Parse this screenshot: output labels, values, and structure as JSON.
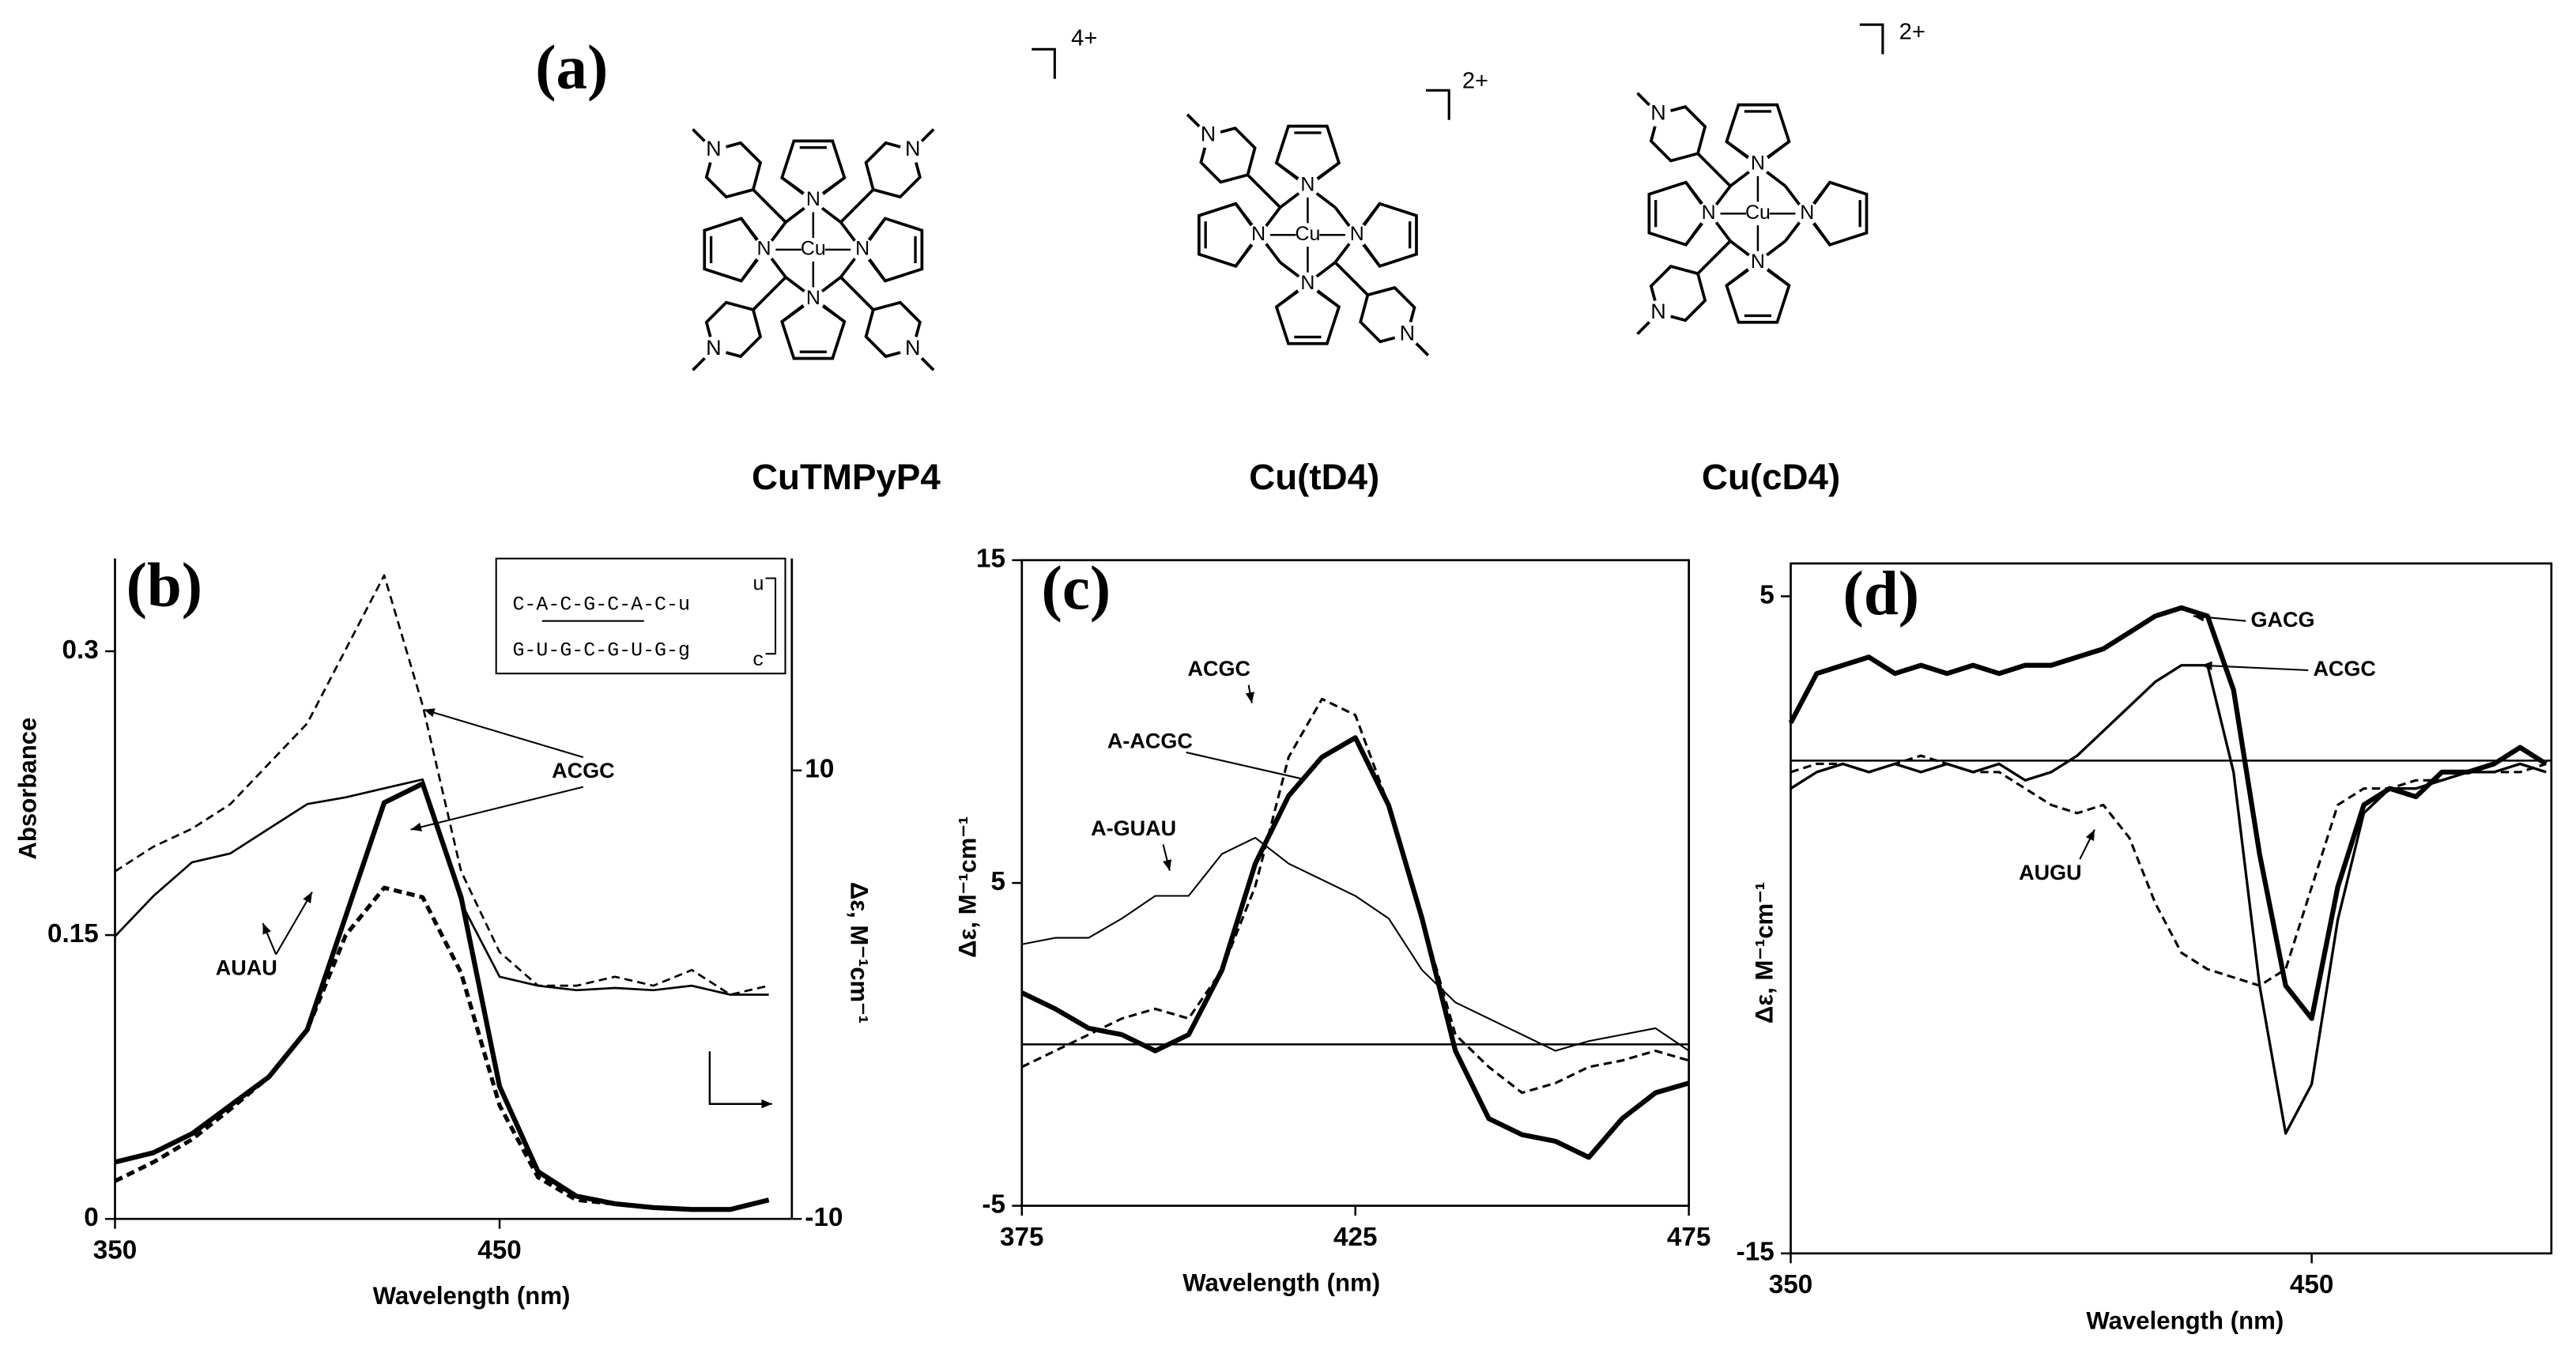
{
  "panel_a": {
    "label": "(a)",
    "atom_n": "N",
    "atom_cu": "Cu",
    "compounds": [
      {
        "name": "CuTMPyP4",
        "charge": "4+"
      },
      {
        "name": "Cu(tD4)",
        "charge": "2+"
      },
      {
        "name": "Cu(cD4)",
        "charge": "2+"
      }
    ]
  },
  "chart_data": [
    {
      "type": "line",
      "title": "(b)",
      "xlabel": "Wavelength (nm)",
      "ylabel": "Absorbance",
      "y2label": "Δε, M⁻¹cm⁻¹",
      "x": [
        350,
        360,
        370,
        380,
        390,
        400,
        410,
        420,
        430,
        440,
        450,
        460,
        470,
        480,
        490,
        500,
        510,
        520
      ],
      "xlim": [
        350,
        526
      ],
      "xticks": [
        350,
        450
      ],
      "ylim": [
        0,
        0.349
      ],
      "yticks": [
        0,
        0.15,
        0.3
      ],
      "y2lim": [
        -10,
        19.45
      ],
      "y2ticks": [
        -10,
        10
      ],
      "series": [
        {
          "color": "#000000",
          "dash": false,
          "width": 3,
          "values": [
            0.03,
            0.035,
            0.045,
            0.06,
            0.075,
            0.1,
            0.16,
            0.22,
            0.23,
            0.17,
            0.07,
            0.025,
            0.012,
            0.008,
            0.006,
            0.005,
            0.005,
            0.01
          ]
        },
        {
          "color": "#000000",
          "dash": true,
          "width": 2.5,
          "values": [
            0.02,
            0.03,
            0.042,
            0.058,
            0.075,
            0.1,
            0.15,
            0.175,
            0.17,
            0.13,
            0.06,
            0.022,
            0.01,
            0.008,
            0.006,
            0.005,
            0.005,
            0.01
          ]
        },
        {
          "color": "#000000",
          "dash": true,
          "width": 1.3,
          "axis": "y2",
          "values": [
            5.5,
            6.6,
            7.4,
            8.5,
            10.3,
            12.1,
            15.4,
            18.7,
            12.9,
            5.5,
            1.9,
            0.4,
            0.4,
            0.8,
            0.4,
            1.1,
            0,
            0.4
          ]
        },
        {
          "color": "#000000",
          "dash": false,
          "width": 1.3,
          "axis": "y2",
          "values": [
            2.6,
            4.4,
            5.9,
            6.3,
            7.4,
            8.5,
            8.8,
            9.2,
            9.6,
            4.1,
            0.8,
            0.4,
            0.2,
            0.3,
            0.2,
            0.4,
            0,
            0
          ]
        }
      ],
      "annotations": [
        "ACGC",
        "AUAU"
      ],
      "inset": {
        "lines": [
          "C-A-C-G-C-A-C-u",
          "G-U-G-C-G-U-G-g"
        ],
        "loop": [
          "u",
          "c"
        ]
      }
    },
    {
      "type": "line",
      "title": "(c)",
      "xlabel": "Wavelength (nm)",
      "ylabel": "Δε, M⁻¹cm⁻¹",
      "zero_line": true,
      "x": [
        375,
        380,
        385,
        390,
        395,
        400,
        405,
        410,
        415,
        420,
        425,
        430,
        435,
        440,
        445,
        450,
        455,
        460,
        465,
        470,
        475
      ],
      "xlim": [
        375,
        475
      ],
      "xticks": [
        375,
        425,
        475
      ],
      "ylim": [
        -5,
        15
      ],
      "yticks": [
        -5,
        5,
        15
      ],
      "series": [
        {
          "name": "ACGC",
          "color": "#000000",
          "dash": true,
          "width": 1.5,
          "values": [
            -0.7,
            -0.2,
            0.3,
            0.8,
            1.1,
            0.8,
            2.3,
            4.9,
            8.9,
            10.7,
            10.2,
            7.4,
            3.9,
            0.3,
            -0.7,
            -1.5,
            -1.2,
            -0.7,
            -0.5,
            -0.2,
            -0.5
          ]
        },
        {
          "name": "A-ACGC",
          "color": "#000000",
          "dash": false,
          "width": 3,
          "values": [
            1.6,
            1.1,
            0.5,
            0.3,
            -0.2,
            0.3,
            2.3,
            5.6,
            7.7,
            8.9,
            9.5,
            7.4,
            3.9,
            -0.2,
            -2.3,
            -2.8,
            -3,
            -3.5,
            -2.3,
            -1.5,
            -1.2
          ]
        },
        {
          "name": "A-GUAU",
          "color": "#000000",
          "dash": false,
          "width": 1,
          "values": [
            3.1,
            3.3,
            3.3,
            3.9,
            4.6,
            4.6,
            5.9,
            6.4,
            5.6,
            5.1,
            4.6,
            3.9,
            2.3,
            1.3,
            0.8,
            0.3,
            -0.2,
            0.1,
            0.3,
            0.5,
            -0.2
          ]
        }
      ]
    },
    {
      "type": "line",
      "title": "(d)",
      "xlabel": "Wavelength (nm)",
      "ylabel": "Δε, M⁻¹cm⁻¹",
      "zero_line": true,
      "x": [
        350,
        355,
        360,
        365,
        370,
        375,
        380,
        385,
        390,
        395,
        400,
        405,
        410,
        415,
        420,
        425,
        430,
        435,
        440,
        445,
        450,
        455,
        460,
        465,
        470,
        475,
        480,
        485,
        490,
        495
      ],
      "xlim": [
        350,
        496
      ],
      "xticks": [
        350,
        450
      ],
      "ylim": [
        -15,
        6
      ],
      "yticks": [
        -15,
        5
      ],
      "series": [
        {
          "name": "GACG",
          "color": "#000000",
          "dash": false,
          "width": 3,
          "values": [
            1.15,
            2.65,
            2.9,
            3.15,
            2.65,
            2.9,
            2.65,
            2.9,
            2.65,
            2.9,
            2.9,
            3.15,
            3.4,
            3.9,
            4.4,
            4.65,
            4.4,
            2.15,
            -2.85,
            -6.85,
            -7.85,
            -3.85,
            -1.35,
            -0.85,
            -1.1,
            -0.35,
            -0.35,
            -0.1,
            0.4,
            -0.1
          ]
        },
        {
          "name": "ACGC",
          "color": "#000000",
          "dash": false,
          "width": 1.6,
          "values": [
            -0.85,
            -0.35,
            -0.1,
            -0.35,
            -0.1,
            -0.35,
            -0.1,
            -0.35,
            -0.1,
            -0.6,
            -0.35,
            0.15,
            0.9,
            1.65,
            2.4,
            2.9,
            2.9,
            -0.35,
            -6.85,
            -11.35,
            -9.85,
            -4.85,
            -1.6,
            -0.85,
            -0.85,
            -0.6,
            -0.35,
            -0.35,
            -0.1,
            -0.35
          ]
        },
        {
          "name": "AUGU",
          "color": "#000000",
          "dash": true,
          "width": 1.5,
          "values": [
            -0.35,
            -0.1,
            -0.1,
            -0.35,
            -0.1,
            0.15,
            -0.1,
            -0.35,
            -0.35,
            -0.85,
            -1.35,
            -1.6,
            -1.35,
            -2.35,
            -4.35,
            -5.85,
            -6.35,
            -6.6,
            -6.85,
            -6.35,
            -3.85,
            -1.35,
            -0.85,
            -0.85,
            -0.6,
            -0.6,
            -0.35,
            -0.35,
            -0.35,
            -0.1
          ]
        }
      ]
    }
  ]
}
